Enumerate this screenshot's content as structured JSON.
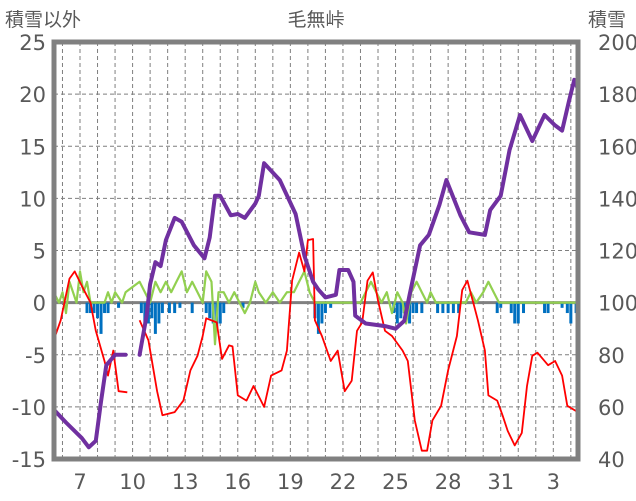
{
  "chart_data": {
    "type": "line",
    "title": "毛無峠",
    "ylabel_left": "積雪以外",
    "ylabel_right": "積雪",
    "ylim_left": [
      -15,
      25
    ],
    "ylim_right": [
      40,
      200
    ],
    "yticks_left": [
      "25",
      "20",
      "15",
      "10",
      "5",
      "0",
      "-5",
      "-10",
      "-15"
    ],
    "yticks_right": [
      "200",
      "180",
      "160",
      "140",
      "120",
      "100",
      "80",
      "60",
      "40"
    ],
    "xlim": [
      5.5,
      35.4
    ],
    "xticks": [
      {
        "day": 7,
        "label": "7"
      },
      {
        "day": 10,
        "label": "10"
      },
      {
        "day": 13,
        "label": "13"
      },
      {
        "day": 16,
        "label": "16"
      },
      {
        "day": 19,
        "label": "19"
      },
      {
        "day": 22,
        "label": "22"
      },
      {
        "day": 25,
        "label": "25"
      },
      {
        "day": 28,
        "label": "28"
      },
      {
        "day": 31,
        "label": "31"
      },
      {
        "day": 34,
        "label": "3"
      }
    ],
    "grid": true,
    "colors": {
      "temperature": "#FF0000",
      "snow_depth": "#7030A0",
      "green_series": "#92D050",
      "blue_bars": "#0070C0",
      "frame": "#808080",
      "text": "#595959"
    },
    "series": [
      {
        "name": "snow_depth",
        "axis": "right",
        "segments": [
          [
            [
              5.5,
              59
            ],
            [
              6.2,
              54
            ],
            [
              7.1,
              48
            ],
            [
              7.5,
              44.5
            ],
            [
              7.9,
              47
            ],
            [
              8.2,
              62
            ],
            [
              8.5,
              76
            ],
            [
              9.0,
              80
            ],
            [
              9.6,
              80
            ]
          ],
          [
            [
              10.4,
              80
            ],
            [
              10.8,
              95
            ],
            [
              11.0,
              107
            ],
            [
              11.3,
              115.5
            ],
            [
              11.6,
              114
            ],
            [
              11.9,
              124
            ],
            [
              12.4,
              132.5
            ],
            [
              12.8,
              131
            ],
            [
              13.5,
              122
            ],
            [
              14.1,
              117
            ],
            [
              14.4,
              125
            ],
            [
              14.7,
              141
            ],
            [
              15.0,
              141
            ],
            [
              15.6,
              133.5
            ],
            [
              16.0,
              134
            ],
            [
              16.4,
              132.5
            ],
            [
              17.0,
              138
            ],
            [
              17.2,
              141
            ],
            [
              17.5,
              153.5
            ],
            [
              18.4,
              147
            ],
            [
              19.3,
              134
            ],
            [
              19.8,
              118
            ],
            [
              20.3,
              108
            ],
            [
              20.6,
              105
            ],
            [
              21.0,
              102
            ],
            [
              21.6,
              103
            ],
            [
              21.8,
              112.5
            ],
            [
              22.3,
              112.5
            ],
            [
              22.6,
              108
            ],
            [
              22.7,
              95
            ],
            [
              23.3,
              92
            ],
            [
              24.4,
              91
            ],
            [
              25.0,
              90
            ],
            [
              25.5,
              93
            ],
            [
              25.8,
              103
            ],
            [
              26.4,
              122
            ],
            [
              26.9,
              126
            ],
            [
              27.5,
              137.5
            ],
            [
              27.9,
              147
            ],
            [
              28.7,
              133.5
            ],
            [
              29.2,
              127
            ],
            [
              30.1,
              126
            ],
            [
              30.4,
              135.5
            ],
            [
              31.0,
              141
            ],
            [
              31.5,
              158.5
            ],
            [
              32.1,
              172
            ],
            [
              32.8,
              162
            ],
            [
              33.5,
              172
            ],
            [
              34.1,
              168
            ],
            [
              34.5,
              166
            ],
            [
              34.9,
              177.5
            ],
            [
              35.2,
              185.5
            ],
            [
              35.4,
              182
            ]
          ]
        ]
      },
      {
        "name": "temperature",
        "axis": "left",
        "segments": [
          [
            [
              5.5,
              -3.6
            ],
            [
              5.9,
              -1.7
            ],
            [
              6.4,
              2.3
            ],
            [
              6.7,
              3
            ],
            [
              7.1,
              1.6
            ],
            [
              7.6,
              0
            ],
            [
              7.9,
              -2.7
            ],
            [
              8.4,
              -5.6
            ],
            [
              8.6,
              -7
            ],
            [
              8.9,
              -4.6
            ],
            [
              9.2,
              -8.5
            ],
            [
              9.7,
              -8.6
            ]
          ],
          [
            [
              10.4,
              -1.7
            ],
            [
              10.9,
              -3.6
            ],
            [
              11.4,
              -8.5
            ],
            [
              11.7,
              -10.8
            ],
            [
              12.4,
              -10.5
            ],
            [
              12.9,
              -9.4
            ],
            [
              13.3,
              -6.5
            ],
            [
              13.7,
              -5.1
            ],
            [
              14.0,
              -3.2
            ],
            [
              14.2,
              -1.5
            ],
            [
              14.8,
              -1.9
            ],
            [
              15.1,
              -5.4
            ],
            [
              15.5,
              -4.1
            ],
            [
              15.7,
              -4.2
            ],
            [
              16.0,
              -8.9
            ],
            [
              16.5,
              -9.4
            ],
            [
              16.9,
              -8
            ],
            [
              17.2,
              -9
            ],
            [
              17.5,
              -10
            ],
            [
              17.9,
              -7
            ],
            [
              18.5,
              -6.5
            ],
            [
              18.8,
              -4.6
            ],
            [
              19.1,
              2.1
            ],
            [
              19.5,
              4.8
            ],
            [
              19.8,
              3
            ],
            [
              20.0,
              6
            ],
            [
              20.3,
              6.1
            ],
            [
              20.4,
              -1.7
            ],
            [
              20.8,
              -3.2
            ],
            [
              21.3,
              -5.6
            ],
            [
              21.7,
              -4.6
            ],
            [
              22.1,
              -8.5
            ],
            [
              22.5,
              -7.5
            ],
            [
              22.8,
              -2.7
            ],
            [
              23.1,
              -1.9
            ],
            [
              23.4,
              2.1
            ],
            [
              23.7,
              2.9
            ],
            [
              24.0,
              0.2
            ],
            [
              24.4,
              -2.7
            ],
            [
              24.8,
              -3.2
            ],
            [
              25.4,
              -4.6
            ],
            [
              25.7,
              -5.6
            ],
            [
              26.1,
              -11.3
            ],
            [
              26.5,
              -14.2
            ],
            [
              26.8,
              -14.2
            ],
            [
              27.1,
              -11.3
            ],
            [
              27.6,
              -9.9
            ],
            [
              28.0,
              -6.5
            ],
            [
              28.5,
              -3.2
            ],
            [
              28.8,
              1.2
            ],
            [
              29.1,
              2.1
            ],
            [
              29.4,
              0.2
            ],
            [
              29.7,
              -1.7
            ],
            [
              30.1,
              -4.6
            ],
            [
              30.3,
              -8.9
            ],
            [
              30.8,
              -9.4
            ],
            [
              31.1,
              -10.8
            ],
            [
              31.4,
              -12.3
            ],
            [
              31.8,
              -13.7
            ],
            [
              32.2,
              -12.5
            ],
            [
              32.5,
              -8
            ],
            [
              32.8,
              -5.1
            ],
            [
              33.1,
              -4.8
            ],
            [
              33.7,
              -6
            ],
            [
              34.1,
              -5.6
            ],
            [
              34.5,
              -7
            ],
            [
              34.8,
              -9.9
            ],
            [
              35.4,
              -10.5
            ]
          ]
        ]
      },
      {
        "name": "green_series",
        "axis": "left",
        "points": [
          [
            5.5,
            1
          ],
          [
            5.8,
            0
          ],
          [
            6.0,
            1
          ],
          [
            6.2,
            -1
          ],
          [
            6.4,
            2
          ],
          [
            6.6,
            1
          ],
          [
            6.8,
            0
          ],
          [
            7.0,
            3
          ],
          [
            7.2,
            1
          ],
          [
            7.4,
            2
          ],
          [
            7.6,
            0
          ],
          [
            8.0,
            0
          ],
          [
            8.4,
            0
          ],
          [
            8.6,
            1
          ],
          [
            8.8,
            0
          ],
          [
            9.0,
            1
          ],
          [
            9.4,
            0
          ],
          [
            9.6,
            1
          ],
          [
            10.4,
            2
          ],
          [
            10.7,
            1
          ],
          [
            11.0,
            0
          ],
          [
            11.3,
            2
          ],
          [
            11.6,
            1
          ],
          [
            11.9,
            2
          ],
          [
            12.2,
            1
          ],
          [
            12.5,
            2
          ],
          [
            12.8,
            3
          ],
          [
            13.1,
            1
          ],
          [
            13.4,
            2
          ],
          [
            13.7,
            1
          ],
          [
            14.0,
            0
          ],
          [
            14.2,
            3
          ],
          [
            14.5,
            2
          ],
          [
            14.7,
            -4
          ],
          [
            14.9,
            1
          ],
          [
            15.2,
            1
          ],
          [
            15.5,
            0
          ],
          [
            15.8,
            1
          ],
          [
            16.1,
            0
          ],
          [
            16.4,
            -1
          ],
          [
            16.7,
            0
          ],
          [
            17.0,
            2
          ],
          [
            17.2,
            1
          ],
          [
            17.6,
            0
          ],
          [
            18.0,
            1
          ],
          [
            18.4,
            0
          ],
          [
            18.8,
            1
          ],
          [
            19.2,
            1
          ],
          [
            19.5,
            2
          ],
          [
            19.8,
            3
          ],
          [
            20.1,
            1
          ],
          [
            20.4,
            0
          ],
          [
            20.8,
            0
          ],
          [
            23.0,
            0
          ],
          [
            23.3,
            1
          ],
          [
            23.6,
            2
          ],
          [
            23.9,
            1
          ],
          [
            24.2,
            0
          ],
          [
            24.5,
            1
          ],
          [
            24.8,
            -1
          ],
          [
            25.1,
            1
          ],
          [
            25.4,
            0
          ],
          [
            25.6,
            -2
          ],
          [
            25.9,
            1
          ],
          [
            26.2,
            2
          ],
          [
            26.5,
            1
          ],
          [
            26.8,
            0
          ],
          [
            27.0,
            1
          ],
          [
            27.3,
            0
          ],
          [
            29.0,
            0
          ],
          [
            29.3,
            1
          ],
          [
            29.6,
            0
          ],
          [
            30.0,
            1
          ],
          [
            30.3,
            2
          ],
          [
            30.6,
            1
          ],
          [
            30.9,
            0
          ],
          [
            35.4,
            0
          ]
        ]
      },
      {
        "name": "blue_bars",
        "axis": "left",
        "bars": [
          [
            7.4,
            -1
          ],
          [
            7.6,
            -1
          ],
          [
            7.8,
            -1
          ],
          [
            8.0,
            -1.5
          ],
          [
            8.2,
            -3
          ],
          [
            8.4,
            -1
          ],
          [
            8.6,
            -1
          ],
          [
            9.2,
            -0.5
          ],
          [
            10.5,
            -1
          ],
          [
            10.7,
            -2
          ],
          [
            10.9,
            -2
          ],
          [
            11.1,
            -1.5
          ],
          [
            11.3,
            -3
          ],
          [
            11.5,
            -2
          ],
          [
            11.7,
            -1
          ],
          [
            12.1,
            -1
          ],
          [
            12.4,
            -1
          ],
          [
            12.7,
            -0.5
          ],
          [
            13.4,
            -1
          ],
          [
            14.2,
            -1
          ],
          [
            14.4,
            -1.5
          ],
          [
            14.6,
            -2
          ],
          [
            14.8,
            -2.5
          ],
          [
            15.0,
            -2
          ],
          [
            15.2,
            -1
          ],
          [
            16.3,
            -0.5
          ],
          [
            20.4,
            -1.5
          ],
          [
            20.6,
            -3
          ],
          [
            20.8,
            -2
          ],
          [
            21.0,
            -1
          ],
          [
            21.3,
            -0.5
          ],
          [
            24.9,
            -1
          ],
          [
            25.1,
            -2
          ],
          [
            25.3,
            -1.5
          ],
          [
            25.5,
            -1
          ],
          [
            25.8,
            -2
          ],
          [
            26.0,
            -1
          ],
          [
            26.2,
            -1
          ],
          [
            26.5,
            -1
          ],
          [
            27.4,
            -1
          ],
          [
            27.7,
            -1
          ],
          [
            28.0,
            -1
          ],
          [
            28.3,
            -1
          ],
          [
            28.6,
            -1
          ],
          [
            30.8,
            -1
          ],
          [
            31.0,
            -0.5
          ],
          [
            31.6,
            -1
          ],
          [
            31.8,
            -2
          ],
          [
            32.0,
            -2
          ],
          [
            32.3,
            -1
          ],
          [
            33.5,
            -1
          ],
          [
            33.7,
            -1
          ],
          [
            34.5,
            -0.5
          ],
          [
            34.8,
            -1
          ],
          [
            35.0,
            -2
          ],
          [
            35.3,
            -1
          ]
        ]
      }
    ]
  }
}
